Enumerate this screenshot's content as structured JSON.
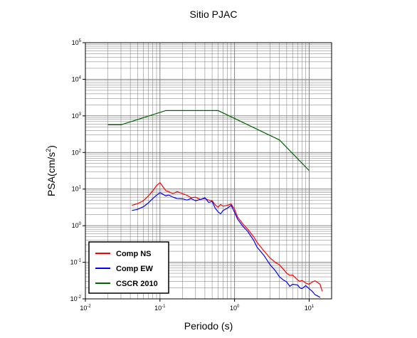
{
  "chart_data": {
    "type": "line",
    "title": "Sitio PJAC",
    "xlabel": "Periodo (s)",
    "ylabel_base": "PSA(cm/s",
    "ylabel_exp": "2",
    "ylabel_close": ")",
    "x_scale": "log",
    "y_scale": "log",
    "xlim": [
      0.01,
      20
    ],
    "ylim": [
      0.01,
      100000
    ],
    "grid": true,
    "legend_placement": "bottom-left",
    "x_ticks": [
      {
        "base": "10",
        "exp": "-2",
        "value": 0.01
      },
      {
        "base": "10",
        "exp": "-1",
        "value": 0.1
      },
      {
        "base": "10",
        "exp": "0",
        "value": 1
      },
      {
        "base": "10",
        "exp": "1",
        "value": 10
      }
    ],
    "y_ticks": [
      {
        "base": "10",
        "exp": "-2",
        "value": 0.01
      },
      {
        "base": "10",
        "exp": "-1",
        "value": 0.1
      },
      {
        "base": "10",
        "exp": "0",
        "value": 1
      },
      {
        "base": "10",
        "exp": "1",
        "value": 10
      },
      {
        "base": "10",
        "exp": "2",
        "value": 100
      },
      {
        "base": "10",
        "exp": "3",
        "value": 1000
      },
      {
        "base": "10",
        "exp": "4",
        "value": 10000
      },
      {
        "base": "10",
        "exp": "5",
        "value": 100000
      }
    ],
    "series": [
      {
        "name": "Comp NS",
        "color": "#ff0000",
        "points": [
          [
            0.042,
            3.6
          ],
          [
            0.05,
            4.0
          ],
          [
            0.06,
            4.8
          ],
          [
            0.07,
            6.5
          ],
          [
            0.08,
            9.0
          ],
          [
            0.09,
            12.5
          ],
          [
            0.1,
            15.0
          ],
          [
            0.11,
            11.5
          ],
          [
            0.12,
            9.0
          ],
          [
            0.13,
            8.5
          ],
          [
            0.15,
            7.5
          ],
          [
            0.17,
            8.5
          ],
          [
            0.2,
            7.5
          ],
          [
            0.23,
            6.8
          ],
          [
            0.26,
            5.8
          ],
          [
            0.3,
            6.0
          ],
          [
            0.35,
            5.2
          ],
          [
            0.4,
            5.5
          ],
          [
            0.45,
            5.0
          ],
          [
            0.5,
            4.8
          ],
          [
            0.55,
            3.7
          ],
          [
            0.6,
            3.2
          ],
          [
            0.65,
            3.8
          ],
          [
            0.7,
            3.4
          ],
          [
            0.8,
            3.6
          ],
          [
            0.9,
            3.9
          ],
          [
            1.0,
            2.8
          ],
          [
            1.1,
            1.7
          ],
          [
            1.3,
            1.1
          ],
          [
            1.5,
            0.8
          ],
          [
            1.8,
            0.5
          ],
          [
            2.0,
            0.35
          ],
          [
            2.5,
            0.2
          ],
          [
            3.0,
            0.13
          ],
          [
            3.5,
            0.1
          ],
          [
            4.0,
            0.085
          ],
          [
            4.5,
            0.065
          ],
          [
            5.0,
            0.05
          ],
          [
            5.5,
            0.044
          ],
          [
            6.0,
            0.045
          ],
          [
            7.0,
            0.033
          ],
          [
            7.5,
            0.03
          ],
          [
            8.0,
            0.032
          ],
          [
            9.0,
            0.027
          ],
          [
            10.0,
            0.025
          ],
          [
            11.0,
            0.029
          ],
          [
            12.0,
            0.031
          ],
          [
            13.0,
            0.028
          ],
          [
            14.0,
            0.025
          ],
          [
            15.0,
            0.016
          ]
        ]
      },
      {
        "name": "Comp EW",
        "color": "#0000ff",
        "points": [
          [
            0.042,
            2.6
          ],
          [
            0.05,
            2.8
          ],
          [
            0.06,
            3.3
          ],
          [
            0.07,
            4.2
          ],
          [
            0.08,
            5.5
          ],
          [
            0.09,
            6.8
          ],
          [
            0.1,
            8.0
          ],
          [
            0.11,
            7.2
          ],
          [
            0.12,
            6.5
          ],
          [
            0.13,
            6.9
          ],
          [
            0.15,
            6.0
          ],
          [
            0.17,
            5.5
          ],
          [
            0.2,
            5.4
          ],
          [
            0.23,
            5.0
          ],
          [
            0.26,
            5.5
          ],
          [
            0.3,
            4.8
          ],
          [
            0.35,
            5.2
          ],
          [
            0.4,
            5.8
          ],
          [
            0.45,
            4.3
          ],
          [
            0.5,
            4.6
          ],
          [
            0.55,
            3.0
          ],
          [
            0.6,
            2.4
          ],
          [
            0.65,
            2.1
          ],
          [
            0.7,
            2.6
          ],
          [
            0.8,
            3.0
          ],
          [
            0.9,
            3.6
          ],
          [
            1.0,
            2.3
          ],
          [
            1.1,
            1.5
          ],
          [
            1.3,
            0.95
          ],
          [
            1.5,
            0.7
          ],
          [
            1.8,
            0.4
          ],
          [
            2.0,
            0.26
          ],
          [
            2.5,
            0.15
          ],
          [
            3.0,
            0.085
          ],
          [
            3.5,
            0.06
          ],
          [
            4.0,
            0.04
          ],
          [
            4.5,
            0.033
          ],
          [
            5.0,
            0.029
          ],
          [
            5.5,
            0.022
          ],
          [
            6.0,
            0.025
          ],
          [
            7.0,
            0.024
          ],
          [
            7.5,
            0.02
          ],
          [
            8.0,
            0.019
          ],
          [
            9.0,
            0.023
          ],
          [
            10.0,
            0.019
          ],
          [
            11.0,
            0.016
          ],
          [
            12.0,
            0.013
          ],
          [
            13.0,
            0.012
          ],
          [
            14.0,
            0.011
          ]
        ]
      },
      {
        "name": "CSCR 2010",
        "color": "#006400",
        "points": [
          [
            0.02,
            570
          ],
          [
            0.03,
            570
          ],
          [
            0.12,
            1400
          ],
          [
            0.6,
            1400
          ],
          [
            4.0,
            220
          ],
          [
            10.0,
            32
          ]
        ]
      }
    ]
  }
}
